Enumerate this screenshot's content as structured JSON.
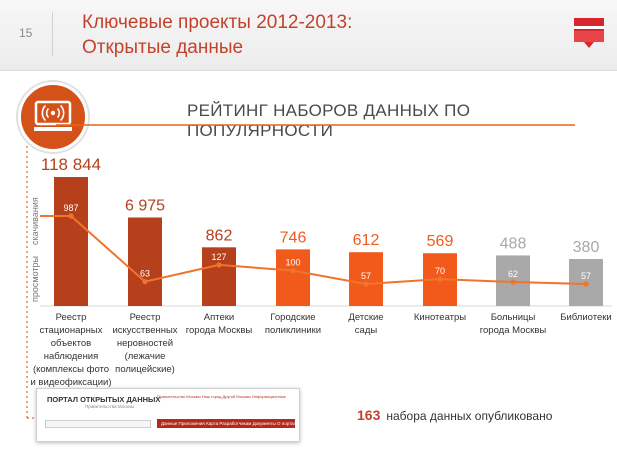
{
  "header": {
    "page_number": "15",
    "title_line1": "Ключевые проекты 2012-2013:",
    "title_line2": "Открытые данные"
  },
  "subtitle": "РЕЙТИНГ НАБОРОВ ДАННЫХ ПО ПОПУЛЯРНОСТИ",
  "axis_labels": {
    "downloads": "скачивания",
    "views": "просмотры"
  },
  "chart_data": {
    "type": "bar",
    "title": "РЕЙТИНГ НАБОРОВ ДАННЫХ ПО ПОПУЛЯРНОСТИ",
    "categories": [
      "Реестр стационарных объектов наблюдения (комплексы фото и видеофиксации)",
      "Реестр искусственных неровностей (лежачие полицейские)",
      "Аптеки города Москвы",
      "Городские поликлиники",
      "Детские сады",
      "Кинотеатры",
      "Больницы города Москвы",
      "Библиотеки"
    ],
    "series": [
      {
        "name": "скачивания",
        "type": "bar",
        "values": [
          118844,
          6975,
          862,
          746,
          612,
          569,
          488,
          380
        ],
        "labels": [
          "118 844",
          "6 975",
          "862",
          "746",
          "612",
          "569",
          "488",
          "380"
        ]
      },
      {
        "name": "просмотры",
        "type": "line",
        "values": [
          987,
          63,
          127,
          100,
          57,
          70,
          62,
          57
        ],
        "labels": [
          "987",
          "63",
          "127",
          "100",
          "57",
          "70",
          "62",
          "57"
        ]
      }
    ],
    "bar_colors": [
      "#b7401c",
      "#b7401c",
      "#b7401c",
      "#f25a1c",
      "#f25a1c",
      "#f25a1c",
      "#a9a9a9",
      "#a9a9a9"
    ],
    "label_colors": [
      "#b7401c",
      "#b7401c",
      "#b7401c",
      "#f25a1c",
      "#f25a1c",
      "#f25a1c",
      "#a9a9a9",
      "#a9a9a9"
    ],
    "line_color": "#f0742c",
    "scale": "not linear (illustrative)"
  },
  "category_label_lines": [
    [
      "Реестр стационарных",
      "объектов",
      "наблюдения",
      "(комплексы фото",
      "и видеофиксации)"
    ],
    [
      "Реестр",
      "искусственных",
      "неровностей",
      "(лежачие",
      "полицейские)"
    ],
    [
      "Аптеки",
      "города Москвы"
    ],
    [
      "Городские",
      "поликлиники"
    ],
    [
      "Детские",
      "сады"
    ],
    [
      "Кинотеатры"
    ],
    [
      "Больницы",
      "города Москвы"
    ],
    [
      "Библиотеки"
    ]
  ],
  "portal_screenshot": {
    "title": "ПОРТАЛ ОТКРЫТЫХ ДАННЫХ",
    "subtitle": "Правительства Москвы",
    "links": "Правительство Москвы   Наш город   Другой Москвы   Информационные",
    "nav": "Данные   Приложения   Карта   Разработчикам   Документы   О портале"
  },
  "published": {
    "count": "163",
    "text": "набора данных опубликовано"
  },
  "colors": {
    "accent": "#c4422c",
    "orange": "#f25a1c",
    "dark_orange": "#b7401c",
    "grey": "#a9a9a9"
  }
}
